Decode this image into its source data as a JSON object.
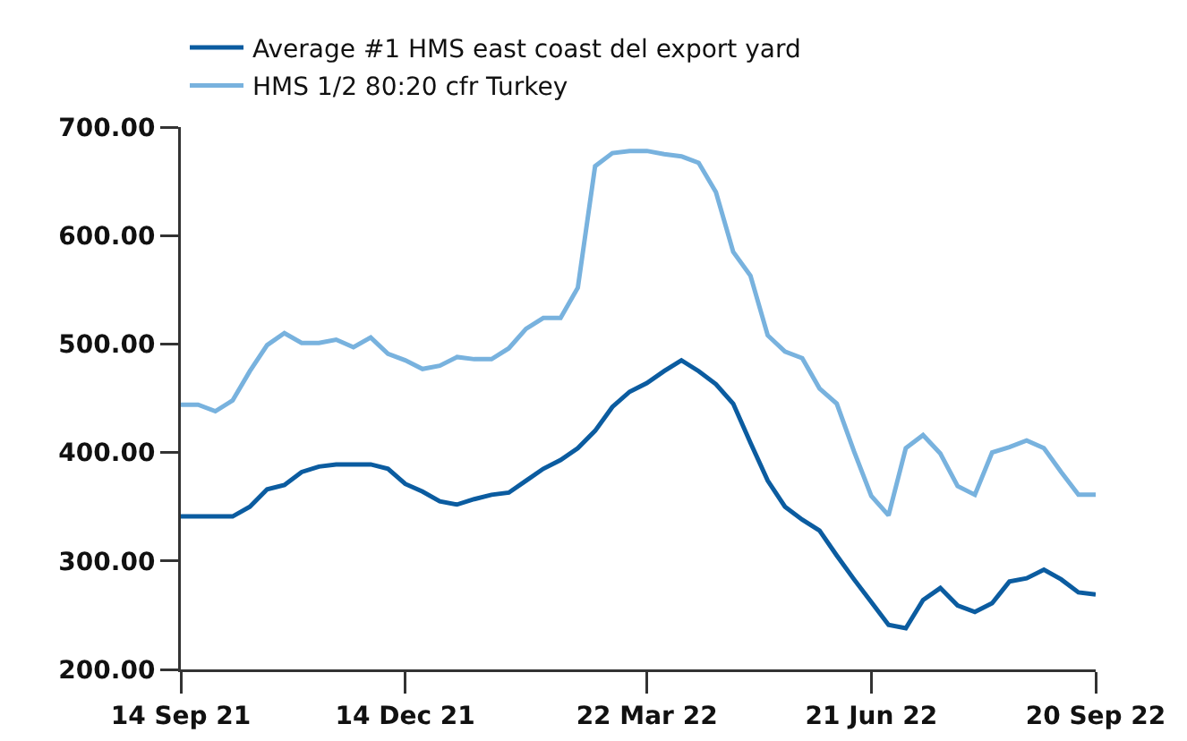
{
  "chart_data": {
    "type": "line",
    "x": [
      "2021-09-14",
      "2021-09-21",
      "2021-09-28",
      "2021-10-05",
      "2021-10-12",
      "2021-10-19",
      "2021-10-26",
      "2021-11-02",
      "2021-11-09",
      "2021-11-16",
      "2021-11-23",
      "2021-11-30",
      "2021-12-07",
      "2021-12-14",
      "2021-12-21",
      "2021-12-28",
      "2022-01-04",
      "2022-01-11",
      "2022-01-18",
      "2022-01-25",
      "2022-02-01",
      "2022-02-08",
      "2022-02-15",
      "2022-02-22",
      "2022-03-01",
      "2022-03-08",
      "2022-03-15",
      "2022-03-22",
      "2022-03-29",
      "2022-04-05",
      "2022-04-12",
      "2022-04-19",
      "2022-04-26",
      "2022-05-03",
      "2022-05-10",
      "2022-05-17",
      "2022-05-24",
      "2022-05-31",
      "2022-06-07",
      "2022-06-14",
      "2022-06-21",
      "2022-06-28",
      "2022-07-05",
      "2022-07-12",
      "2022-07-19",
      "2022-07-26",
      "2022-08-02",
      "2022-08-09",
      "2022-08-16",
      "2022-08-23",
      "2022-08-30",
      "2022-09-06",
      "2022-09-13",
      "2022-09-20"
    ],
    "series": [
      {
        "name": "Average #1 HMS east coast del export yard",
        "color": "#0b5ca0",
        "values": [
          341,
          341,
          341,
          341,
          350,
          366,
          370,
          382,
          387,
          389,
          389,
          389,
          385,
          371,
          364,
          355,
          352,
          357,
          361,
          363,
          374,
          385,
          393,
          404,
          420,
          442,
          456,
          464,
          475,
          485,
          475,
          463,
          445,
          409,
          374,
          350,
          338,
          328,
          305,
          283,
          262,
          241,
          238,
          264,
          275,
          259,
          253,
          261,
          281,
          284,
          292,
          283,
          271,
          269
        ]
      },
      {
        "name": "HMS 1/2 80:20 cfr Turkey",
        "color": "#78b2de",
        "values": [
          444,
          444,
          438,
          448,
          475,
          499,
          510,
          501,
          501,
          504,
          497,
          506,
          491,
          485,
          477,
          480,
          488,
          486,
          486,
          496,
          514,
          524,
          524,
          552,
          664,
          676,
          678,
          678,
          675,
          673,
          667,
          640,
          585,
          563,
          508,
          493,
          487,
          459,
          445,
          401,
          360,
          342,
          404,
          416,
          399,
          369,
          361,
          400,
          405,
          411,
          404,
          382,
          361,
          361
        ]
      }
    ],
    "xlim": [
      "2021-09-14",
      "2022-09-20"
    ],
    "xticks": [
      {
        "value": "2021-09-14",
        "label": "14 Sep 21"
      },
      {
        "value": "2021-12-14",
        "label": "14 Dec 21"
      },
      {
        "value": "2022-03-22",
        "label": "22 Mar 22"
      },
      {
        "value": "2022-06-21",
        "label": "21 Jun 22"
      },
      {
        "value": "2022-09-20",
        "label": "20 Sep 22"
      }
    ],
    "ylim": [
      200,
      700
    ],
    "yticks": [
      {
        "value": 200,
        "label": "200.00"
      },
      {
        "value": 300,
        "label": "300.00"
      },
      {
        "value": 400,
        "label": "400.00"
      },
      {
        "value": 500,
        "label": "500.00"
      },
      {
        "value": 600,
        "label": "600.00"
      },
      {
        "value": 700,
        "label": "700.00"
      }
    ],
    "grid": false,
    "legend": "top left",
    "marker": "none",
    "line_style": "solid"
  }
}
